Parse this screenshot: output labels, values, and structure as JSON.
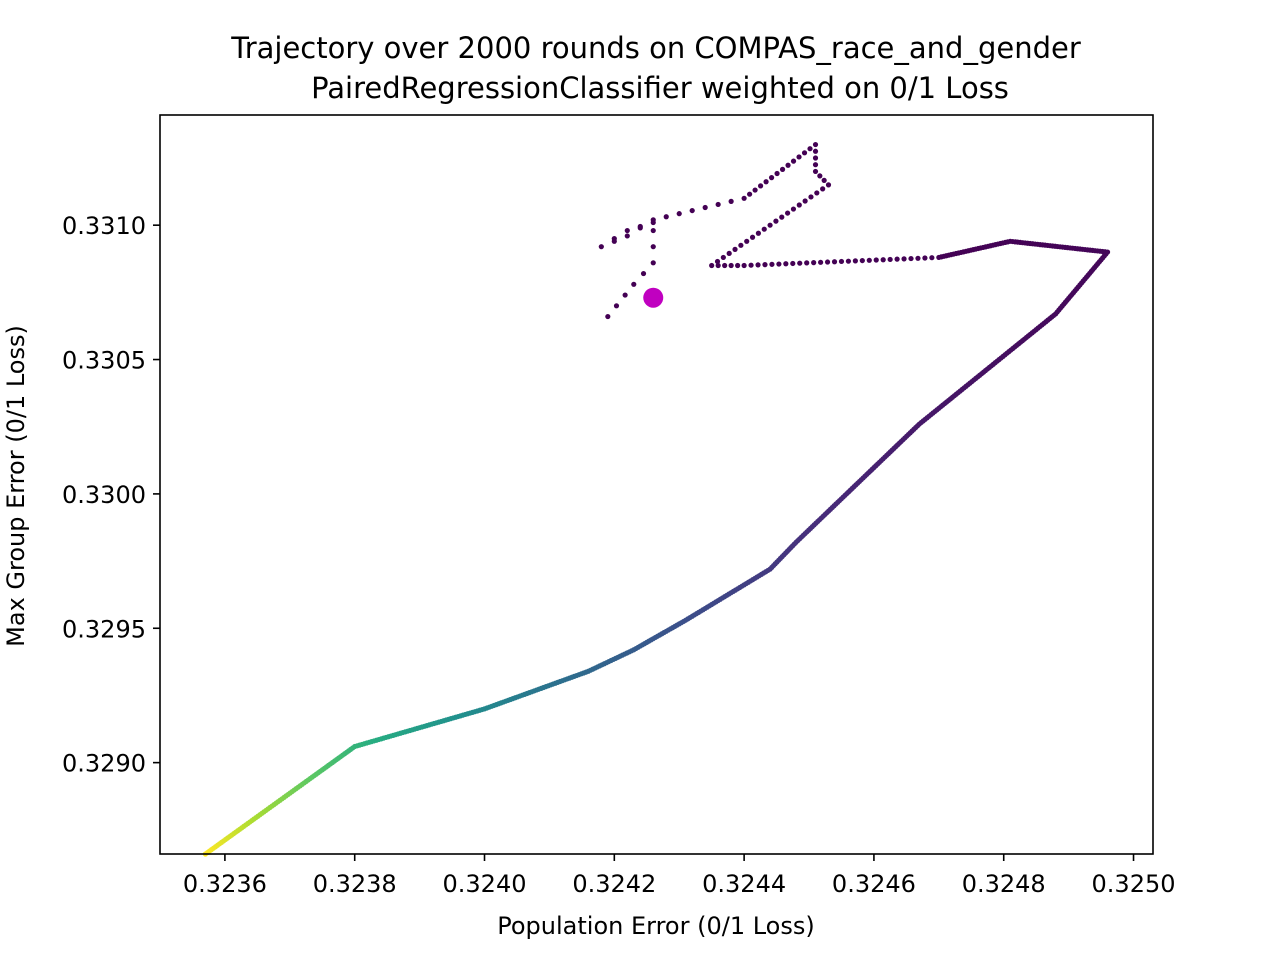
{
  "chart_data": {
    "type": "scatter",
    "title_line1": "Trajectory over 2000 rounds on COMPAS_race_and_gender",
    "title_line2": "PairedRegressionClassifier weighted on 0/1 Loss",
    "xlabel": "Population Error (0/1 Loss)",
    "ylabel": "Max Group Error (0/1 Loss)",
    "xlim": [
      0.3235,
      0.32503
    ],
    "ylim": [
      0.32866,
      0.33141
    ],
    "xticks": [
      0.3236,
      0.3238,
      0.324,
      0.3242,
      0.3244,
      0.3246,
      0.3248,
      0.325
    ],
    "xtick_labels": [
      "0.3236",
      "0.3238",
      "0.3240",
      "0.3242",
      "0.3244",
      "0.3246",
      "0.3248",
      "0.3250"
    ],
    "yticks": [
      0.329,
      0.3295,
      0.33,
      0.3305,
      0.331
    ],
    "ytick_labels": [
      "0.3290",
      "0.3295",
      "0.3300",
      "0.3305",
      "0.3310"
    ],
    "grid": false,
    "colormap": "viridis",
    "colors": {
      "highlight_point": "#c000c0",
      "axes": "#000000",
      "start": "#440154",
      "end": "#fde725"
    },
    "trajectory_waypoints": [
      {
        "x": 0.32419,
        "y": 0.33066
      },
      {
        "x": 0.32423,
        "y": 0.33078
      },
      {
        "x": 0.32426,
        "y": 0.33086
      },
      {
        "x": 0.32426,
        "y": 0.33098
      },
      {
        "x": 0.32426,
        "y": 0.33101
      },
      {
        "x": 0.32422,
        "y": 0.33098
      },
      {
        "x": 0.32418,
        "y": 0.33092
      },
      {
        "x": 0.32422,
        "y": 0.33096
      },
      {
        "x": 0.32426,
        "y": 0.33102
      },
      {
        "x": 0.3244,
        "y": 0.3311
      },
      {
        "x": 0.32451,
        "y": 0.3313
      },
      {
        "x": 0.32451,
        "y": 0.3312
      },
      {
        "x": 0.32453,
        "y": 0.33115
      },
      {
        "x": 0.32444,
        "y": 0.331
      },
      {
        "x": 0.32435,
        "y": 0.33085
      },
      {
        "x": 0.3244,
        "y": 0.33085
      },
      {
        "x": 0.3247,
        "y": 0.33088
      },
      {
        "x": 0.32481,
        "y": 0.33094
      },
      {
        "x": 0.32496,
        "y": 0.3309
      },
      {
        "x": 0.32488,
        "y": 0.33067
      },
      {
        "x": 0.32467,
        "y": 0.33026
      },
      {
        "x": 0.32448,
        "y": 0.32982
      },
      {
        "x": 0.32444,
        "y": 0.32972
      },
      {
        "x": 0.32431,
        "y": 0.32953
      },
      {
        "x": 0.32423,
        "y": 0.32942
      },
      {
        "x": 0.32416,
        "y": 0.32934
      },
      {
        "x": 0.324,
        "y": 0.3292
      },
      {
        "x": 0.3238,
        "y": 0.32906
      },
      {
        "x": 0.32357,
        "y": 0.32866
      }
    ],
    "highlight_point": {
      "x": 0.32426,
      "y": 0.33073
    }
  }
}
